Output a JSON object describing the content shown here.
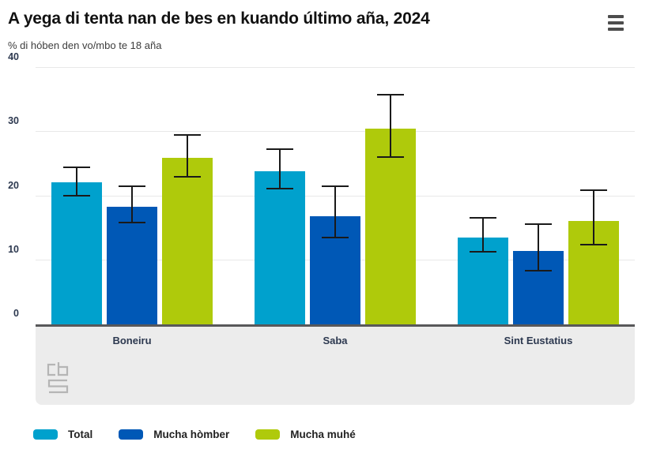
{
  "header": {
    "title": "A yega di tenta nan de bes en kuando último aña, 2024",
    "subtitle": "% di hóben den vo/mbo te 18 aña",
    "menu_icon": "hamburger-menu"
  },
  "chart_data": {
    "type": "bar",
    "title": "A yega di tenta nan de bes en kuando último aña, 2024",
    "subtitle": "% di hóben den vo/mbo te 18 aña",
    "categories": [
      "Boneiru",
      "Saba",
      "Sint Eustatius"
    ],
    "series": [
      {
        "name": "Total",
        "color": "#00a1cd",
        "values": [
          22.2,
          23.9,
          13.6
        ],
        "ci_low": [
          20.0,
          21.0,
          11.2
        ],
        "ci_high": [
          24.6,
          27.4,
          16.8
        ]
      },
      {
        "name": "Mucha hòmber",
        "color": "#0058b6",
        "values": [
          18.4,
          16.9,
          11.5
        ],
        "ci_low": [
          15.8,
          13.4,
          8.3
        ],
        "ci_high": [
          21.7,
          21.7,
          15.7
        ]
      },
      {
        "name": "Mucha muhé",
        "color": "#afca0b",
        "values": [
          26.0,
          30.5,
          16.1
        ],
        "ci_low": [
          22.9,
          26.0,
          12.3
        ],
        "ci_high": [
          29.7,
          35.9,
          21.0
        ]
      }
    ],
    "ylim": [
      0,
      40
    ],
    "yticks": [
      0,
      10,
      20,
      30,
      40
    ],
    "grid": true,
    "error_bars": true,
    "legend_position": "bottom",
    "xlabel": "",
    "ylabel": ""
  },
  "branding": {
    "logo": "cbs"
  },
  "colors": {
    "axis_line": "#58585a",
    "gridline": "#e8e8e8",
    "band_background": "#ececec",
    "error_bar": "#1a1a1a",
    "logo_gray": "#b5b5b5"
  }
}
